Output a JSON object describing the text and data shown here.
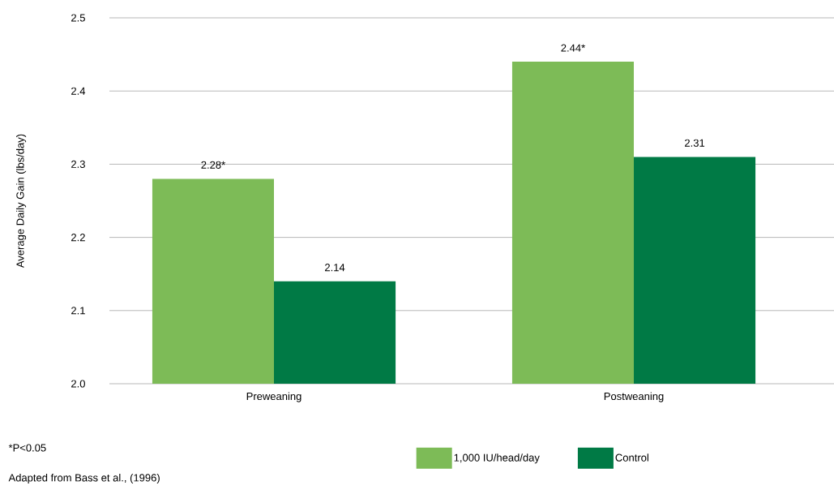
{
  "chart_data": {
    "type": "bar",
    "ylabel": "Average Daily Gain (lbs/day)",
    "categories": [
      "Preweaning",
      "Postweaning"
    ],
    "series": [
      {
        "name": "1,000 IU/head/day",
        "color": "#7dbb57",
        "values": [
          2.28,
          2.44
        ],
        "value_labels": [
          "2.28*",
          "2.44*"
        ]
      },
      {
        "name": "Control",
        "color": "#007a45",
        "values": [
          2.14,
          2.31
        ],
        "value_labels": [
          "2.14",
          "2.31"
        ]
      }
    ],
    "ylim": [
      2.0,
      2.5
    ],
    "yticks": [
      {
        "value": 2.0,
        "label": "2.0"
      },
      {
        "value": 2.1,
        "label": "2.1"
      },
      {
        "value": 2.2,
        "label": "2.2"
      },
      {
        "value": 2.3,
        "label": "2.3"
      },
      {
        "value": 2.4,
        "label": "2.4"
      },
      {
        "value": 2.5,
        "label": "2.5"
      }
    ],
    "grid": "y",
    "legend": "bottom right",
    "annotations": [
      "*P<0.05",
      "Adapted from Bass et al., (1996)"
    ]
  }
}
